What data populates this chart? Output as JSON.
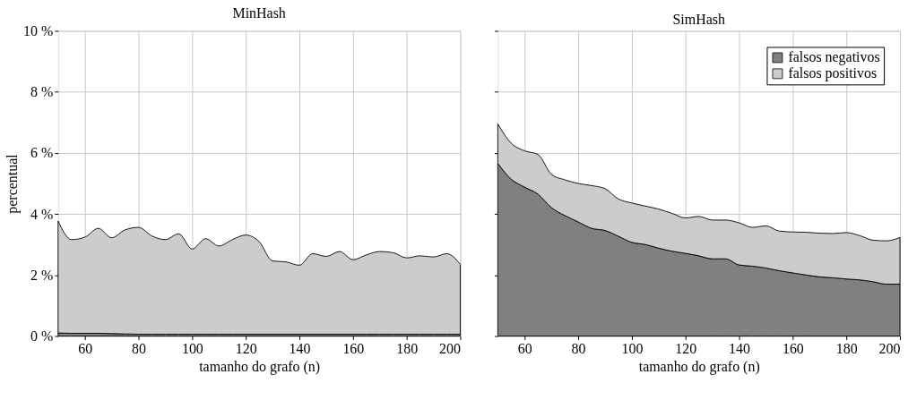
{
  "chart_data": [
    {
      "type": "area",
      "stacked": true,
      "title": "MinHash",
      "xlabel": "tamanho do grafo (n)",
      "ylabel": "percentual",
      "x": [
        50,
        55,
        60,
        65,
        70,
        75,
        80,
        85,
        90,
        95,
        100,
        105,
        110,
        115,
        120,
        125,
        130,
        135,
        140,
        145,
        150,
        155,
        160,
        165,
        170,
        175,
        180,
        185,
        190,
        195,
        200
      ],
      "series": [
        {
          "color": "#808080",
          "values": [
            0.1,
            0.09,
            0.09,
            0.09,
            0.08,
            0.07,
            0.06,
            0.06,
            0.06,
            0.06,
            0.06,
            0.06,
            0.06,
            0.06,
            0.06,
            0.06,
            0.06,
            0.06,
            0.06,
            0.06,
            0.06,
            0.06,
            0.06,
            0.06,
            0.06,
            0.06,
            0.06,
            0.06,
            0.06,
            0.06,
            0.06
          ]
        },
        {
          "color": "#cccccc",
          "values": [
            3.67,
            3.07,
            3.15,
            3.44,
            3.14,
            3.41,
            3.5,
            3.22,
            3.1,
            3.29,
            2.79,
            3.13,
            2.89,
            3.1,
            3.25,
            3.03,
            2.4,
            2.37,
            2.26,
            2.64,
            2.55,
            2.71,
            2.44,
            2.6,
            2.71,
            2.67,
            2.5,
            2.57,
            2.53,
            2.64,
            2.29
          ]
        }
      ],
      "xlim": [
        50,
        200
      ],
      "xticks": [
        60,
        80,
        100,
        120,
        140,
        160,
        180,
        200
      ],
      "ylim": [
        0,
        10
      ],
      "yticks": [
        {
          "value": 0,
          "label": "0 %"
        },
        {
          "value": 2,
          "label": "2 %"
        },
        {
          "value": 4,
          "label": "4 %"
        },
        {
          "value": 6,
          "label": "6 %"
        },
        {
          "value": 8,
          "label": "8 %"
        },
        {
          "value": 10,
          "label": "10 %"
        }
      ],
      "grid": true,
      "legend": false
    },
    {
      "type": "area",
      "stacked": true,
      "title": "SimHash",
      "xlabel": "tamanho do grafo (n)",
      "x": [
        50,
        55,
        60,
        65,
        70,
        75,
        80,
        85,
        90,
        95,
        100,
        105,
        110,
        115,
        120,
        125,
        130,
        135,
        140,
        145,
        150,
        155,
        160,
        165,
        170,
        175,
        180,
        185,
        190,
        195,
        200
      ],
      "series": [
        {
          "name": "falsos negativos",
          "color": "#808080",
          "values": [
            5.66,
            5.14,
            4.88,
            4.65,
            4.21,
            3.95,
            3.74,
            3.53,
            3.46,
            3.27,
            3.07,
            3.0,
            2.88,
            2.78,
            2.71,
            2.63,
            2.53,
            2.53,
            2.33,
            2.29,
            2.23,
            2.14,
            2.07,
            2.0,
            1.94,
            1.91,
            1.87,
            1.84,
            1.78,
            1.7,
            1.7
          ]
        },
        {
          "name": "falsos positivos",
          "color": "#cccccc",
          "values": [
            1.29,
            1.18,
            1.19,
            1.3,
            1.09,
            1.17,
            1.26,
            1.4,
            1.37,
            1.22,
            1.29,
            1.26,
            1.28,
            1.24,
            1.16,
            1.29,
            1.27,
            1.27,
            1.38,
            1.27,
            1.38,
            1.3,
            1.34,
            1.4,
            1.43,
            1.45,
            1.52,
            1.45,
            1.36,
            1.42,
            1.53
          ]
        }
      ],
      "xlim": [
        50,
        200
      ],
      "xticks": [
        60,
        80,
        100,
        120,
        140,
        160,
        180,
        200
      ],
      "ylim": [
        0,
        10
      ],
      "yticks": [
        {
          "value": 0,
          "label": null
        },
        {
          "value": 2,
          "label": null
        },
        {
          "value": 4,
          "label": null
        },
        {
          "value": 6,
          "label": null
        },
        {
          "value": 8,
          "label": null
        },
        {
          "value": 10,
          "label": null
        }
      ],
      "tick_labels": "x",
      "grid": true,
      "legend": "top right"
    }
  ]
}
